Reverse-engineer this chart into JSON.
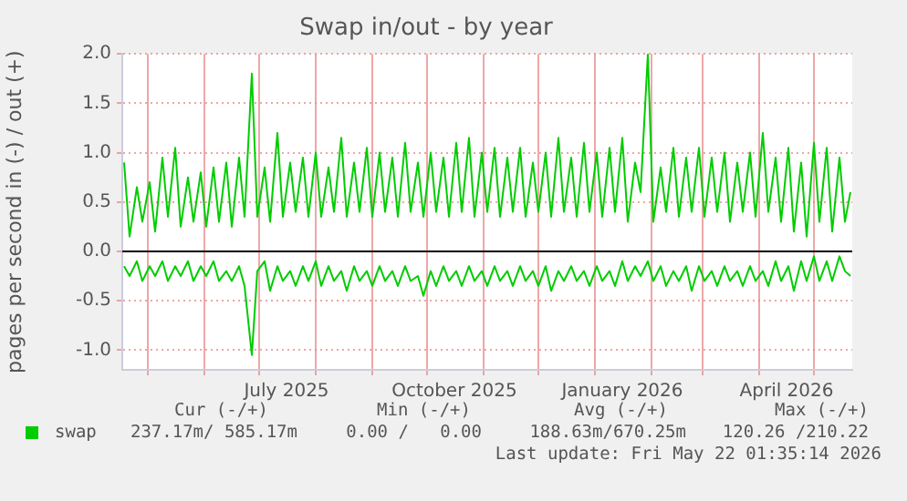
{
  "chart_data": {
    "type": "line",
    "title": "Swap in/out - by year",
    "ylabel": "pages per second in (-) / out (+)",
    "x": [
      "2025-04-18",
      "2025-04-21",
      "2025-04-25",
      "2025-04-28",
      "2025-05-02",
      "2025-05-05",
      "2025-05-09",
      "2025-05-12",
      "2025-05-16",
      "2025-05-19",
      "2025-05-23",
      "2025-05-26",
      "2025-05-30",
      "2025-06-02",
      "2025-06-06",
      "2025-06-09",
      "2025-06-13",
      "2025-06-16",
      "2025-06-20",
      "2025-06-23",
      "2025-06-27",
      "2025-06-30",
      "2025-07-04",
      "2025-07-07",
      "2025-07-11",
      "2025-07-14",
      "2025-07-18",
      "2025-07-21",
      "2025-07-25",
      "2025-07-28",
      "2025-08-01",
      "2025-08-04",
      "2025-08-08",
      "2025-08-11",
      "2025-08-15",
      "2025-08-18",
      "2025-08-22",
      "2025-08-25",
      "2025-08-29",
      "2025-09-01",
      "2025-09-05",
      "2025-09-08",
      "2025-09-12",
      "2025-09-15",
      "2025-09-19",
      "2025-09-22",
      "2025-09-26",
      "2025-09-29",
      "2025-10-03",
      "2025-10-06",
      "2025-10-10",
      "2025-10-13",
      "2025-10-17",
      "2025-10-20",
      "2025-10-24",
      "2025-10-27",
      "2025-10-31",
      "2025-11-03",
      "2025-11-07",
      "2025-11-10",
      "2025-11-14",
      "2025-11-17",
      "2025-11-21",
      "2025-11-24",
      "2025-11-28",
      "2025-12-01",
      "2025-12-05",
      "2025-12-08",
      "2025-12-12",
      "2025-12-15",
      "2025-12-19",
      "2025-12-22",
      "2025-12-26",
      "2025-12-29",
      "2026-01-02",
      "2026-01-05",
      "2026-01-09",
      "2026-01-12",
      "2026-01-16",
      "2026-01-19",
      "2026-01-23",
      "2026-01-26",
      "2026-01-30",
      "2026-02-02",
      "2026-02-06",
      "2026-02-09",
      "2026-02-13",
      "2026-02-16",
      "2026-02-20",
      "2026-02-23",
      "2026-02-27",
      "2026-03-02",
      "2026-03-06",
      "2026-03-09",
      "2026-03-13",
      "2026-03-16",
      "2026-03-20",
      "2026-03-23",
      "2026-03-27",
      "2026-03-30",
      "2026-04-03",
      "2026-04-06",
      "2026-04-10",
      "2026-04-13",
      "2026-04-17",
      "2026-04-20",
      "2026-04-24",
      "2026-04-27",
      "2026-05-01",
      "2026-05-04",
      "2026-05-08",
      "2026-05-11",
      "2026-05-15",
      "2026-05-18",
      "2026-05-21"
    ],
    "series": [
      {
        "name": "swap",
        "color": "#00cc00",
        "values": [
          0.9,
          0.15,
          0.65,
          0.3,
          0.7,
          0.2,
          0.95,
          0.35,
          1.05,
          0.25,
          0.75,
          0.3,
          0.8,
          0.25,
          0.85,
          0.3,
          0.9,
          0.25,
          0.95,
          0.35,
          1.8,
          0.35,
          0.85,
          0.3,
          1.2,
          0.35,
          0.9,
          0.4,
          0.95,
          0.35,
          1.0,
          0.35,
          0.85,
          0.4,
          1.15,
          0.35,
          0.9,
          0.4,
          1.05,
          0.35,
          1.0,
          0.4,
          0.95,
          0.35,
          1.1,
          0.4,
          0.9,
          0.35,
          1.0,
          0.4,
          0.95,
          0.35,
          1.1,
          0.4,
          1.15,
          0.35,
          1.0,
          0.4,
          1.05,
          0.35,
          0.95,
          0.4,
          1.05,
          0.35,
          0.9,
          0.4,
          1.0,
          0.35,
          1.15,
          0.4,
          0.95,
          0.35,
          1.1,
          0.4,
          1.0,
          0.35,
          1.05,
          0.4,
          1.15,
          0.3,
          0.9,
          0.6,
          2.0,
          0.3,
          0.85,
          0.4,
          1.05,
          0.35,
          0.95,
          0.4,
          1.05,
          0.35,
          0.95,
          0.4,
          1.0,
          0.3,
          0.9,
          0.4,
          1.0,
          0.35,
          1.2,
          0.4,
          0.95,
          0.3,
          1.05,
          0.2,
          0.9,
          0.15,
          1.1,
          0.3,
          1.05,
          0.2,
          0.95,
          0.3,
          0.6
        ]
      },
      {
        "color": "#00cc00",
        "values": [
          -0.15,
          -0.25,
          -0.1,
          -0.3,
          -0.15,
          -0.25,
          -0.1,
          -0.3,
          -0.15,
          -0.25,
          -0.1,
          -0.3,
          -0.15,
          -0.25,
          -0.1,
          -0.3,
          -0.2,
          -0.3,
          -0.15,
          -0.35,
          -1.05,
          -0.2,
          -0.1,
          -0.4,
          -0.15,
          -0.3,
          -0.2,
          -0.35,
          -0.15,
          -0.3,
          -0.1,
          -0.35,
          -0.15,
          -0.3,
          -0.2,
          -0.4,
          -0.15,
          -0.3,
          -0.2,
          -0.35,
          -0.15,
          -0.3,
          -0.2,
          -0.35,
          -0.15,
          -0.3,
          -0.25,
          -0.45,
          -0.2,
          -0.35,
          -0.15,
          -0.3,
          -0.2,
          -0.35,
          -0.15,
          -0.3,
          -0.2,
          -0.35,
          -0.15,
          -0.3,
          -0.2,
          -0.35,
          -0.15,
          -0.3,
          -0.2,
          -0.35,
          -0.15,
          -0.4,
          -0.2,
          -0.3,
          -0.15,
          -0.3,
          -0.2,
          -0.35,
          -0.15,
          -0.3,
          -0.2,
          -0.35,
          -0.1,
          -0.3,
          -0.15,
          -0.25,
          -0.1,
          -0.3,
          -0.15,
          -0.35,
          -0.2,
          -0.3,
          -0.15,
          -0.4,
          -0.15,
          -0.3,
          -0.2,
          -0.35,
          -0.15,
          -0.3,
          -0.2,
          -0.35,
          -0.15,
          -0.3,
          -0.2,
          -0.35,
          -0.1,
          -0.3,
          -0.15,
          -0.4,
          -0.1,
          -0.3,
          -0.05,
          -0.3,
          -0.1,
          -0.3,
          -0.05,
          -0.2,
          -0.25
        ]
      }
    ],
    "xlim": [
      "2025-04-17",
      "2026-05-22"
    ],
    "xticks": [
      {
        "value": "2025-05-01",
        "label": null
      },
      {
        "value": "2025-06-01",
        "label": null
      },
      {
        "value": "2025-07-01",
        "label": null
      },
      {
        "value": "2025-07-16",
        "label": "July 2025"
      },
      {
        "value": "2025-08-01",
        "label": null
      },
      {
        "value": "2025-09-01",
        "label": null
      },
      {
        "value": "2025-10-01",
        "label": null
      },
      {
        "value": "2025-10-16",
        "label": "October 2025"
      },
      {
        "value": "2025-11-01",
        "label": null
      },
      {
        "value": "2025-12-01",
        "label": null
      },
      {
        "value": "2026-01-01",
        "label": null
      },
      {
        "value": "2026-01-16",
        "label": "January 2026"
      },
      {
        "value": "2026-02-01",
        "label": null
      },
      {
        "value": "2026-03-01",
        "label": null
      },
      {
        "value": "2026-04-01",
        "label": null
      },
      {
        "value": "2026-04-16",
        "label": "April 2026"
      },
      {
        "value": "2026-05-01",
        "label": null
      }
    ],
    "ylim": [
      -1.2,
      2.0
    ],
    "yticks": [
      {
        "value": -1,
        "label": "-1.0"
      },
      {
        "value": -0.5,
        "label": "-0.5"
      },
      {
        "value": 0,
        "label": "0.0"
      },
      {
        "value": 0.5,
        "label": "0.5"
      },
      {
        "value": 1,
        "label": "1.0"
      },
      {
        "value": 1.5,
        "label": "1.5"
      },
      {
        "value": 2,
        "label": "2.0"
      }
    ],
    "ref_lines": [
      {
        "axis": "y",
        "value": 0,
        "color": "#000000"
      }
    ],
    "grid": true,
    "legend": "bottom left",
    "marker": "none",
    "line_style": "solid",
    "annotations": [
      "Cur (-/+)",
      "Min (-/+)",
      "Avg (-/+)",
      "Max (-/+)",
      "237.17m/ 585.17m",
      "0.00 /   0.00",
      "188.63m/670.25m",
      "120.26 /210.22",
      "Last update: Fri May 22 01:35:14 2026"
    ]
  }
}
